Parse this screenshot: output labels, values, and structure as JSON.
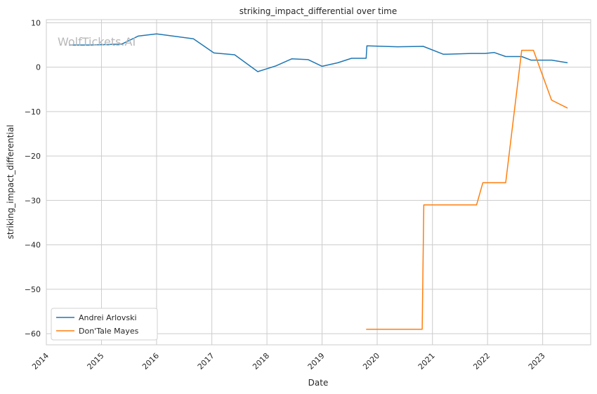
{
  "watermark": "WolfTickets.AI",
  "chart_data": {
    "type": "line",
    "title": "striking_impact_differential over time",
    "xlabel": "Date",
    "ylabel": "striking_impact_differential",
    "xlim": [
      "2014-01-01",
      "2023-11-15"
    ],
    "ylim": [
      -62.5,
      10.7
    ],
    "x_ticks": [
      "2014",
      "2015",
      "2016",
      "2017",
      "2018",
      "2019",
      "2020",
      "2021",
      "2022",
      "2023"
    ],
    "y_ticks": [
      10,
      0,
      -10,
      -20,
      -30,
      -40,
      -50,
      -60
    ],
    "y_tick_labels": [
      "10",
      "0",
      "−10",
      "−20",
      "−30",
      "−40",
      "−50",
      "−60"
    ],
    "grid": true,
    "legend_position": "lower-left",
    "series": [
      {
        "name": "Andrei Arlovski",
        "color": "#1f77b4",
        "points": [
          [
            "2014-06-01",
            5.0
          ],
          [
            "2014-10-15",
            5.0
          ],
          [
            "2015-05-15",
            5.2
          ],
          [
            "2015-09-01",
            7.0
          ],
          [
            "2016-01-01",
            7.5
          ],
          [
            "2016-09-01",
            6.4
          ],
          [
            "2017-01-15",
            3.2
          ],
          [
            "2017-06-01",
            2.8
          ],
          [
            "2017-11-01",
            -1.0
          ],
          [
            "2018-03-01",
            0.3
          ],
          [
            "2018-06-15",
            1.9
          ],
          [
            "2018-10-01",
            1.7
          ],
          [
            "2019-01-01",
            0.2
          ],
          [
            "2019-04-15",
            1.0
          ],
          [
            "2019-07-15",
            2.0
          ],
          [
            "2019-10-20",
            2.0
          ],
          [
            "2019-10-25",
            4.8
          ],
          [
            "2020-05-15",
            4.6
          ],
          [
            "2020-11-01",
            4.7
          ],
          [
            "2021-03-15",
            2.9
          ],
          [
            "2021-09-15",
            3.1
          ],
          [
            "2021-12-15",
            3.1
          ],
          [
            "2022-02-15",
            3.3
          ],
          [
            "2022-05-01",
            2.4
          ],
          [
            "2022-08-15",
            2.4
          ],
          [
            "2022-10-15",
            1.6
          ],
          [
            "2023-01-01",
            1.6
          ],
          [
            "2023-03-01",
            1.6
          ],
          [
            "2023-06-15",
            1.0
          ]
        ]
      },
      {
        "name": "Don'Tale Mayes",
        "color": "#ff7f0e",
        "points": [
          [
            "2019-10-20",
            -59.0
          ],
          [
            "2020-10-25",
            -59.0
          ],
          [
            "2020-11-05",
            -31.0
          ],
          [
            "2021-10-20",
            -31.0
          ],
          [
            "2021-12-01",
            -26.0
          ],
          [
            "2022-05-01",
            -26.0
          ],
          [
            "2022-08-15",
            3.8
          ],
          [
            "2022-11-01",
            3.8
          ],
          [
            "2023-03-01",
            -7.4
          ],
          [
            "2023-06-15",
            -9.2
          ]
        ]
      }
    ]
  }
}
